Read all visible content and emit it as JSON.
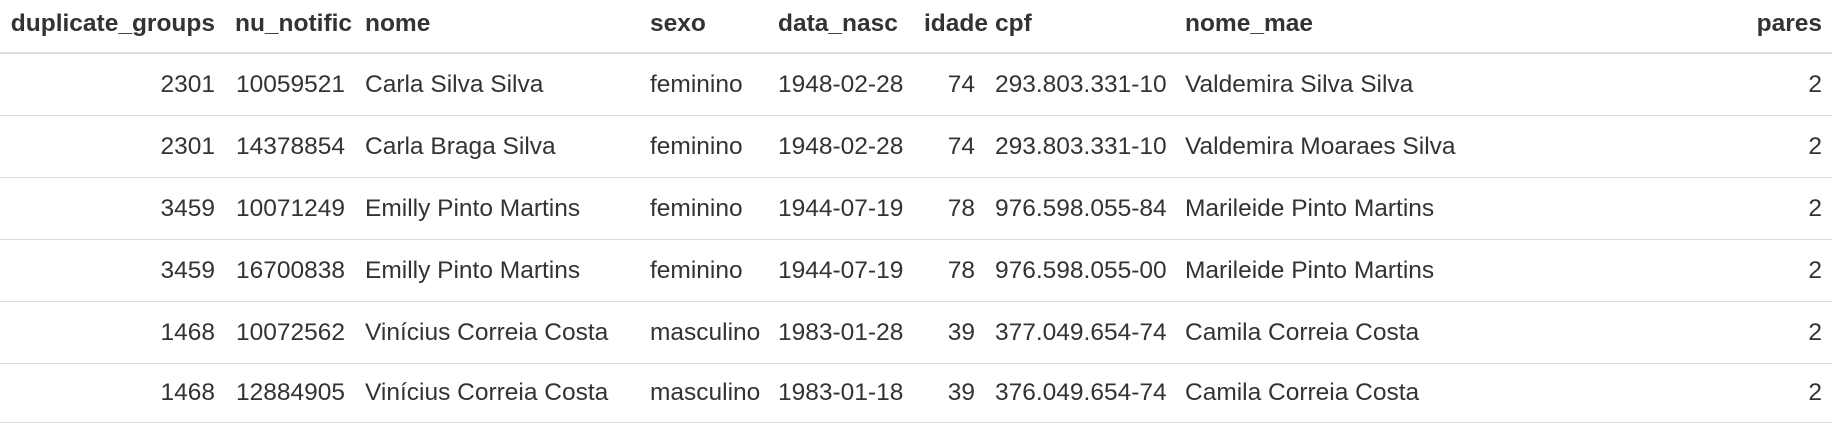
{
  "table": {
    "columns": [
      {
        "key": "duplicate_groups",
        "label": "duplicate_groups",
        "align": "right"
      },
      {
        "key": "nu_notific",
        "label": "nu_notific",
        "align": "right"
      },
      {
        "key": "nome",
        "label": "nome",
        "align": "left"
      },
      {
        "key": "sexo",
        "label": "sexo",
        "align": "left"
      },
      {
        "key": "data_nasc",
        "label": "data_nasc",
        "align": "left"
      },
      {
        "key": "idade",
        "label": "idade",
        "align": "right"
      },
      {
        "key": "cpf",
        "label": "cpf",
        "align": "left"
      },
      {
        "key": "nome_mae",
        "label": "nome_mae",
        "align": "left"
      },
      {
        "key": "pares",
        "label": "pares",
        "align": "right"
      }
    ],
    "rows": [
      [
        "2301",
        "10059521",
        "Carla Silva Silva",
        "feminino",
        "1948-02-28",
        "74",
        "293.803.331-10",
        "Valdemira Silva Silva",
        "2"
      ],
      [
        "2301",
        "14378854",
        "Carla Braga Silva",
        "feminino",
        "1948-02-28",
        "74",
        "293.803.331-10",
        "Valdemira Moaraes Silva",
        "2"
      ],
      [
        "3459",
        "10071249",
        "Emilly Pinto Martins",
        "feminino",
        "1944-07-19",
        "78",
        "976.598.055-84",
        "Marileide Pinto Martins",
        "2"
      ],
      [
        "3459",
        "16700838",
        "Emilly Pinto Martins",
        "feminino",
        "1944-07-19",
        "78",
        "976.598.055-00",
        "Marileide Pinto Martins",
        "2"
      ],
      [
        "1468",
        "10072562",
        "Vinícius Correia Costa",
        "masculino",
        "1983-01-28",
        "39",
        "377.049.654-74",
        "Camila Correia Costa",
        "2"
      ],
      [
        "1468",
        "12884905",
        "Vinícius Correia Costa",
        "masculino",
        "1983-01-18",
        "39",
        "376.049.654-74",
        "Camila Correia Costa",
        "2"
      ]
    ]
  },
  "colors": {
    "text": "#333333",
    "border": "#dddddd",
    "background": "#ffffff"
  }
}
